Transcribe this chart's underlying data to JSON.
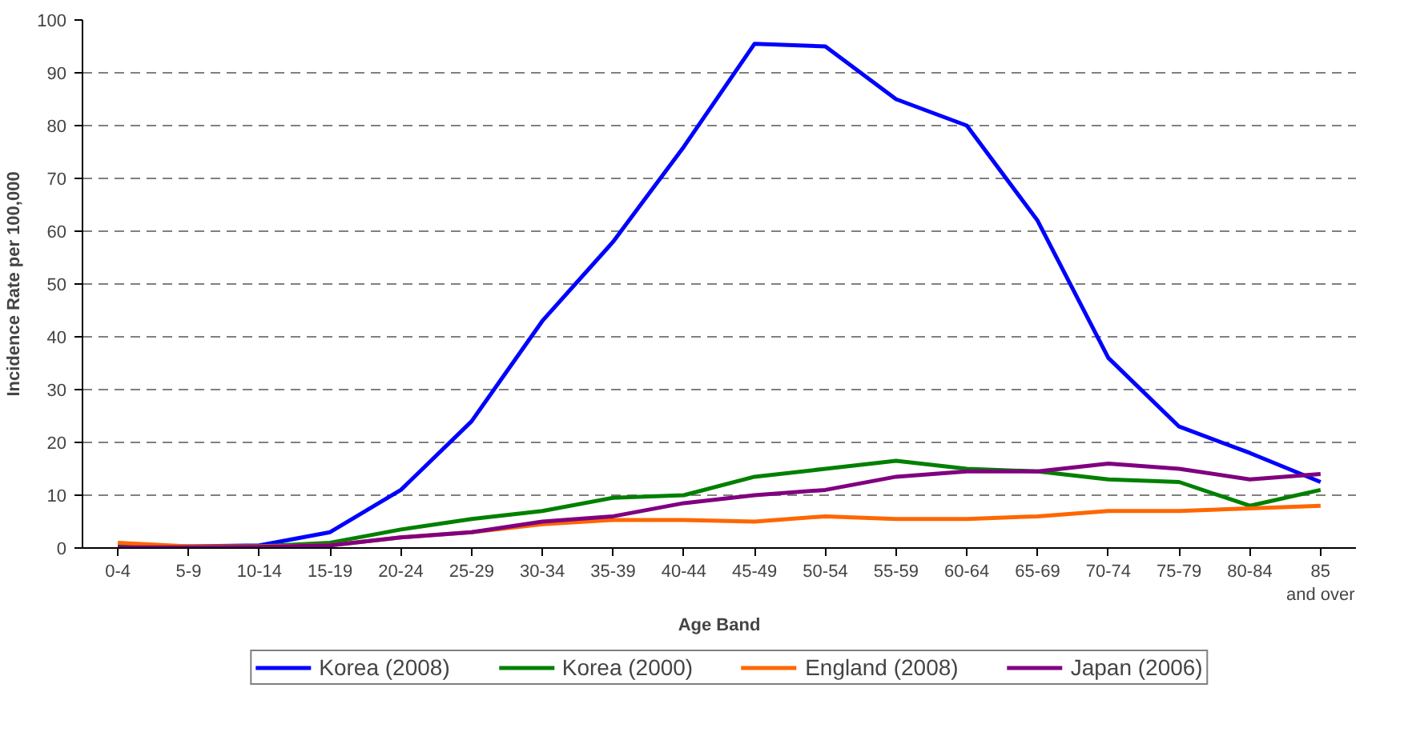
{
  "chart_data": {
    "type": "line",
    "xlabel": "Age Band",
    "ylabel": "Incidence Rate per 100,000",
    "categories": [
      "0-4",
      "5-9",
      "10-14",
      "15-19",
      "20-24",
      "25-29",
      "30-34",
      "35-39",
      "40-44",
      "45-49",
      "50-54",
      "55-59",
      "60-64",
      "65-69",
      "70-74",
      "75-79",
      "80-84",
      "85 and over"
    ],
    "series": [
      {
        "name": "Korea (2008)",
        "color": "#0000ff",
        "values": [
          0.3,
          0.3,
          0.5,
          3,
          11,
          24,
          43,
          58,
          76,
          95.5,
          95,
          85,
          80,
          62,
          36,
          23,
          18,
          12.5
        ]
      },
      {
        "name": "Korea (2000)",
        "color": "#008000",
        "values": [
          0.2,
          0.2,
          0.3,
          1,
          3.5,
          5.5,
          7,
          9.5,
          10,
          13.5,
          15,
          16.5,
          15,
          14.5,
          13,
          12.5,
          8,
          11
        ]
      },
      {
        "name": "England (2008)",
        "color": "#ff6600",
        "values": [
          1,
          0.3,
          0.3,
          0.5,
          2,
          3,
          4.5,
          5.3,
          5.3,
          5,
          6,
          5.5,
          5.5,
          6,
          7,
          7,
          7.5,
          8
        ]
      },
      {
        "name": "Japan (2006)",
        "color": "#800080",
        "values": [
          0.1,
          0.1,
          0.2,
          0.5,
          2,
          3,
          5,
          6,
          8.5,
          10,
          11,
          13.5,
          14.5,
          14.5,
          16,
          15,
          13,
          14
        ]
      }
    ],
    "ylim": [
      0,
      100
    ],
    "yticks": [
      0,
      10,
      20,
      30,
      40,
      50,
      60,
      70,
      80,
      90,
      100
    ],
    "grid": "y",
    "legend": "bottom",
    "marker": "none",
    "line_style": "solid"
  }
}
